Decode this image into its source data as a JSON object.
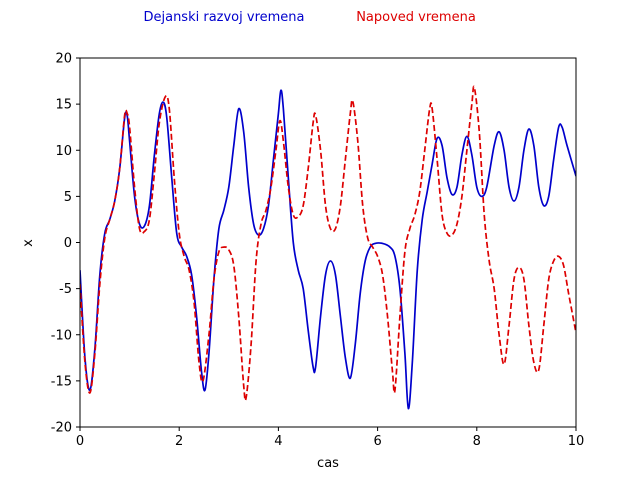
{
  "chart_data": {
    "type": "line",
    "title": "",
    "xlabel": "cas",
    "ylabel": "x",
    "xlim": [
      0,
      10
    ],
    "ylim": [
      -20,
      20
    ],
    "xticks": [
      0,
      2,
      4,
      6,
      8,
      10
    ],
    "yticks": [
      -20,
      -15,
      -10,
      -5,
      0,
      5,
      10,
      15,
      20
    ],
    "grid": false,
    "legend_position": "top-center",
    "series": [
      {
        "name": "Dejanski razvoj vremena",
        "color": "#0000cc",
        "dash": "solid",
        "points": [
          [
            0.0,
            -3.0
          ],
          [
            0.1,
            -12.5
          ],
          [
            0.2,
            -16.0
          ],
          [
            0.3,
            -11.5
          ],
          [
            0.4,
            -3.5
          ],
          [
            0.5,
            1.0
          ],
          [
            0.6,
            2.5
          ],
          [
            0.7,
            4.5
          ],
          [
            0.8,
            8.0
          ],
          [
            0.9,
            13.5
          ],
          [
            0.95,
            13.8
          ],
          [
            1.0,
            11.0
          ],
          [
            1.1,
            5.0
          ],
          [
            1.2,
            2.0
          ],
          [
            1.3,
            1.8
          ],
          [
            1.4,
            4.0
          ],
          [
            1.5,
            9.5
          ],
          [
            1.6,
            14.0
          ],
          [
            1.68,
            15.2
          ],
          [
            1.75,
            13.5
          ],
          [
            1.85,
            7.0
          ],
          [
            1.95,
            1.0
          ],
          [
            2.05,
            -0.5
          ],
          [
            2.15,
            -1.5
          ],
          [
            2.25,
            -3.5
          ],
          [
            2.35,
            -8.0
          ],
          [
            2.45,
            -14.0
          ],
          [
            2.52,
            -16.0
          ],
          [
            2.6,
            -12.0
          ],
          [
            2.7,
            -4.0
          ],
          [
            2.8,
            1.5
          ],
          [
            2.9,
            3.5
          ],
          [
            3.0,
            6.0
          ],
          [
            3.1,
            10.5
          ],
          [
            3.2,
            14.5
          ],
          [
            3.3,
            12.0
          ],
          [
            3.4,
            6.0
          ],
          [
            3.5,
            2.0
          ],
          [
            3.6,
            0.8
          ],
          [
            3.7,
            1.5
          ],
          [
            3.8,
            4.0
          ],
          [
            3.9,
            9.0
          ],
          [
            4.0,
            14.0
          ],
          [
            4.05,
            16.5
          ],
          [
            4.1,
            14.5
          ],
          [
            4.2,
            7.0
          ],
          [
            4.3,
            0.0
          ],
          [
            4.4,
            -3.0
          ],
          [
            4.5,
            -5.0
          ],
          [
            4.6,
            -9.5
          ],
          [
            4.7,
            -13.5
          ],
          [
            4.75,
            -13.5
          ],
          [
            4.85,
            -8.0
          ],
          [
            4.95,
            -3.5
          ],
          [
            5.05,
            -2.0
          ],
          [
            5.15,
            -3.5
          ],
          [
            5.25,
            -8.0
          ],
          [
            5.35,
            -12.5
          ],
          [
            5.45,
            -14.7
          ],
          [
            5.55,
            -11.0
          ],
          [
            5.65,
            -5.5
          ],
          [
            5.75,
            -2.0
          ],
          [
            5.85,
            -0.5
          ],
          [
            5.95,
            -0.1
          ],
          [
            6.1,
            -0.1
          ],
          [
            6.25,
            -0.5
          ],
          [
            6.35,
            -1.5
          ],
          [
            6.45,
            -5.0
          ],
          [
            6.55,
            -12.0
          ],
          [
            6.62,
            -18.0
          ],
          [
            6.7,
            -13.0
          ],
          [
            6.8,
            -3.0
          ],
          [
            6.9,
            2.5
          ],
          [
            7.0,
            5.5
          ],
          [
            7.1,
            8.5
          ],
          [
            7.2,
            11.3
          ],
          [
            7.3,
            10.5
          ],
          [
            7.4,
            7.0
          ],
          [
            7.5,
            5.2
          ],
          [
            7.6,
            6.0
          ],
          [
            7.7,
            9.5
          ],
          [
            7.8,
            11.5
          ],
          [
            7.9,
            9.5
          ],
          [
            8.0,
            6.0
          ],
          [
            8.1,
            5.0
          ],
          [
            8.2,
            6.0
          ],
          [
            8.35,
            10.5
          ],
          [
            8.45,
            12.0
          ],
          [
            8.55,
            10.0
          ],
          [
            8.65,
            6.0
          ],
          [
            8.75,
            4.5
          ],
          [
            8.85,
            6.0
          ],
          [
            8.95,
            10.0
          ],
          [
            9.05,
            12.3
          ],
          [
            9.15,
            10.5
          ],
          [
            9.25,
            6.0
          ],
          [
            9.35,
            4.0
          ],
          [
            9.45,
            5.0
          ],
          [
            9.55,
            9.0
          ],
          [
            9.65,
            12.5
          ],
          [
            9.72,
            12.5
          ],
          [
            9.82,
            10.5
          ],
          [
            10.0,
            7.2
          ]
        ]
      },
      {
        "name": "Napoved vremena",
        "color": "#dd0000",
        "dash": "dashed",
        "points": [
          [
            0.0,
            -4.5
          ],
          [
            0.1,
            -13.0
          ],
          [
            0.2,
            -16.3
          ],
          [
            0.3,
            -12.0
          ],
          [
            0.4,
            -4.5
          ],
          [
            0.5,
            0.5
          ],
          [
            0.6,
            2.5
          ],
          [
            0.7,
            4.5
          ],
          [
            0.8,
            8.0
          ],
          [
            0.9,
            13.8
          ],
          [
            0.95,
            14.0
          ],
          [
            1.0,
            12.5
          ],
          [
            1.1,
            6.0
          ],
          [
            1.2,
            1.5
          ],
          [
            1.3,
            1.2
          ],
          [
            1.4,
            2.5
          ],
          [
            1.5,
            7.5
          ],
          [
            1.6,
            13.0
          ],
          [
            1.72,
            15.8
          ],
          [
            1.8,
            14.5
          ],
          [
            1.9,
            7.0
          ],
          [
            2.0,
            1.0
          ],
          [
            2.1,
            -1.5
          ],
          [
            2.2,
            -3.0
          ],
          [
            2.3,
            -6.5
          ],
          [
            2.4,
            -13.0
          ],
          [
            2.48,
            -15.0
          ],
          [
            2.6,
            -10.0
          ],
          [
            2.7,
            -4.0
          ],
          [
            2.8,
            -1.0
          ],
          [
            2.9,
            -0.5
          ],
          [
            3.0,
            -0.8
          ],
          [
            3.1,
            -2.5
          ],
          [
            3.2,
            -8.0
          ],
          [
            3.3,
            -15.5
          ],
          [
            3.35,
            -16.8
          ],
          [
            3.45,
            -11.0
          ],
          [
            3.55,
            -2.0
          ],
          [
            3.65,
            2.0
          ],
          [
            3.75,
            3.5
          ],
          [
            3.85,
            6.0
          ],
          [
            3.95,
            10.0
          ],
          [
            4.03,
            13.2
          ],
          [
            4.1,
            11.0
          ],
          [
            4.2,
            6.0
          ],
          [
            4.3,
            3.0
          ],
          [
            4.4,
            2.8
          ],
          [
            4.5,
            4.0
          ],
          [
            4.6,
            8.0
          ],
          [
            4.7,
            13.0
          ],
          [
            4.75,
            13.8
          ],
          [
            4.85,
            10.0
          ],
          [
            4.95,
            4.0
          ],
          [
            5.05,
            1.5
          ],
          [
            5.15,
            1.5
          ],
          [
            5.25,
            4.0
          ],
          [
            5.35,
            9.0
          ],
          [
            5.45,
            14.0
          ],
          [
            5.5,
            15.3
          ],
          [
            5.6,
            11.0
          ],
          [
            5.7,
            4.0
          ],
          [
            5.8,
            0.5
          ],
          [
            5.9,
            -0.5
          ],
          [
            6.0,
            -1.5
          ],
          [
            6.1,
            -3.5
          ],
          [
            6.2,
            -8.0
          ],
          [
            6.3,
            -14.0
          ],
          [
            6.35,
            -16.0
          ],
          [
            6.45,
            -8.0
          ],
          [
            6.55,
            -1.0
          ],
          [
            6.65,
            1.5
          ],
          [
            6.75,
            3.0
          ],
          [
            6.85,
            5.5
          ],
          [
            6.95,
            10.0
          ],
          [
            7.05,
            14.5
          ],
          [
            7.1,
            14.5
          ],
          [
            7.2,
            9.0
          ],
          [
            7.3,
            3.0
          ],
          [
            7.4,
            1.0
          ],
          [
            7.5,
            0.8
          ],
          [
            7.6,
            2.0
          ],
          [
            7.7,
            5.0
          ],
          [
            7.8,
            10.0
          ],
          [
            7.9,
            15.0
          ],
          [
            7.95,
            16.8
          ],
          [
            8.05,
            12.0
          ],
          [
            8.15,
            3.0
          ],
          [
            8.25,
            -2.0
          ],
          [
            8.35,
            -5.0
          ],
          [
            8.45,
            -10.0
          ],
          [
            8.55,
            -13.2
          ],
          [
            8.65,
            -9.0
          ],
          [
            8.75,
            -4.0
          ],
          [
            8.85,
            -2.7
          ],
          [
            8.95,
            -4.0
          ],
          [
            9.05,
            -9.0
          ],
          [
            9.15,
            -13.0
          ],
          [
            9.25,
            -13.8
          ],
          [
            9.35,
            -9.0
          ],
          [
            9.45,
            -4.0
          ],
          [
            9.55,
            -2.0
          ],
          [
            9.65,
            -1.5
          ],
          [
            9.75,
            -2.5
          ],
          [
            9.85,
            -5.5
          ],
          [
            10.0,
            -9.8
          ]
        ]
      }
    ]
  }
}
